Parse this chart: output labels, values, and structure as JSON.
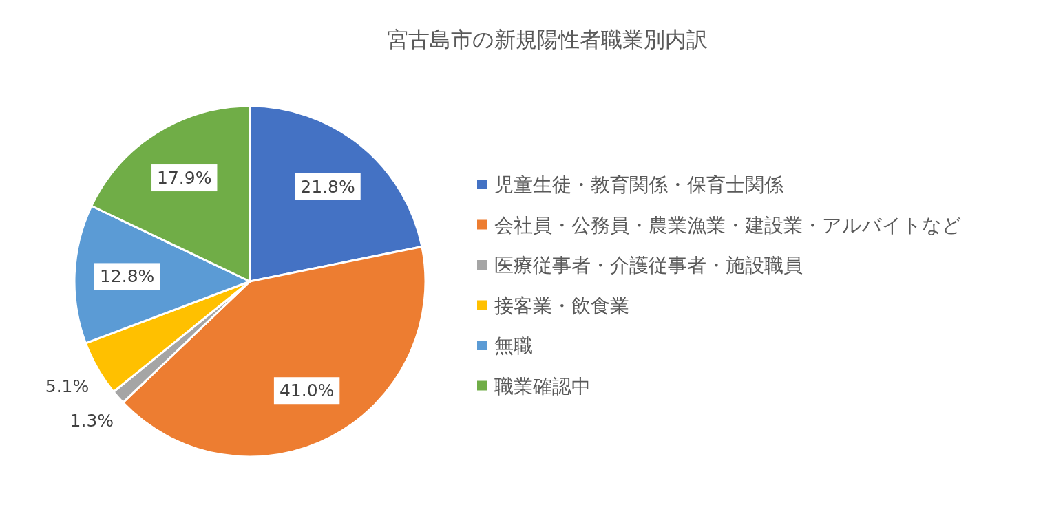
{
  "chart_data": {
    "type": "pie",
    "title": "宮古島市の新規陽性者職業別内訳",
    "categories": [
      "児童生徒・教育関係・保育士関係",
      "会社員・公務員・農業漁業・建設業・アルバイトなど",
      "医療従事者・介護従事者・施設職員",
      "接客業・飲食業",
      "無職",
      "職業確認中"
    ],
    "values": [
      21.8,
      41.0,
      1.3,
      5.1,
      12.8,
      17.9
    ],
    "value_labels": [
      "21.8%",
      "41.0%",
      "1.3%",
      "5.1%",
      "12.8%",
      "17.9%"
    ],
    "colors": [
      "#4472c4",
      "#ed7d31",
      "#a5a5a5",
      "#ffc000",
      "#5b9bd5",
      "#70ad47"
    ],
    "legend": "right"
  }
}
